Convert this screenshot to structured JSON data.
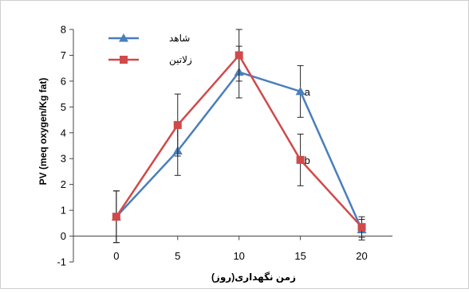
{
  "chart_data": {
    "type": "line",
    "xlabel": "زمن نگهداری(روز)",
    "ylabel": "PV (meq oxygen/Kg fat)",
    "x": [
      0,
      5,
      10,
      15,
      20
    ],
    "xlim": [
      -3.5,
      22.5
    ],
    "ylim": [
      -1,
      8
    ],
    "y_ticks": [
      -1,
      0,
      1,
      2,
      3,
      4,
      5,
      6,
      7,
      8
    ],
    "x_ticks": [
      0,
      5,
      10,
      15,
      20
    ],
    "grid": false,
    "legend": "top-left",
    "series": [
      {
        "name": "شاهد",
        "color": "#4a7ebb",
        "marker": "triangle",
        "values": [
          0.75,
          3.3,
          6.35,
          5.6,
          0.25
        ],
        "errors": [
          1.0,
          0.95,
          1.0,
          1.0,
          0.4
        ]
      },
      {
        "name": "زلاتین",
        "color": "#d04a4a",
        "marker": "square",
        "values": [
          0.75,
          4.3,
          7.0,
          2.95,
          0.35
        ],
        "errors": [
          1.0,
          1.2,
          1.0,
          1.0,
          0.4
        ]
      }
    ],
    "annotations": [
      {
        "text": "a",
        "x": 15,
        "y": 5.6
      },
      {
        "text": "b",
        "x": 15,
        "y": 2.95
      }
    ]
  }
}
